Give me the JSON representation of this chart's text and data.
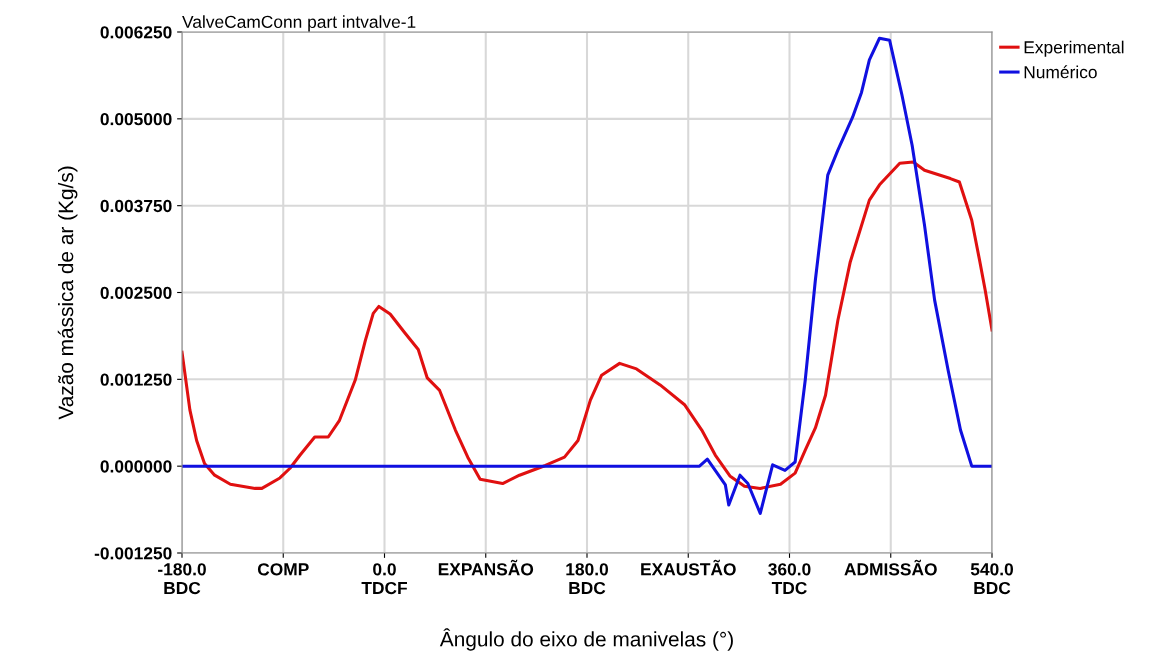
{
  "chart_data": {
    "type": "line",
    "title": "ValveCamConn part intvalve-1",
    "xlabel": "Ângulo do eixo de manivelas (°)",
    "ylabel": "Vazão mássica de ar (Kg/s)",
    "xlim": [
      -180,
      540
    ],
    "xticks": [
      {
        "value": -180,
        "label": "-180.0\nBDC"
      },
      {
        "value": -90,
        "label": "COMP"
      },
      {
        "value": 0,
        "label": "0.0\nTDCF"
      },
      {
        "value": 90,
        "label": "EXPANSÃO"
      },
      {
        "value": 180,
        "label": "180.0\nBDC"
      },
      {
        "value": 270,
        "label": "EXAUSTÃO"
      },
      {
        "value": 360,
        "label": "360.0\nTDC"
      },
      {
        "value": 450,
        "label": "ADMISSÃO"
      },
      {
        "value": 540,
        "label": "540.0\nBDC"
      }
    ],
    "ylim": [
      -0.00125,
      0.00625
    ],
    "yticks": [
      {
        "value": -0.00125,
        "label": "-0.001250"
      },
      {
        "value": 0,
        "label": "0.000000"
      },
      {
        "value": 0.00125,
        "label": "0.001250"
      },
      {
        "value": 0.0025,
        "label": "0.002500"
      },
      {
        "value": 0.00375,
        "label": "0.003750"
      },
      {
        "value": 0.005,
        "label": "0.005000"
      },
      {
        "value": 0.00625,
        "label": "0.006250"
      }
    ],
    "grid": true,
    "legend": "top right",
    "marker": "none",
    "line_style": "solid",
    "series": [
      {
        "name": "Experimental",
        "color": "#e01010",
        "x": [
          -180,
          -173,
          -167,
          -160,
          -151,
          -137,
          -115,
          -109,
          -93,
          -84,
          -75,
          -62,
          -50,
          -40,
          -26,
          -17,
          -10,
          -5,
          5,
          18,
          30,
          38,
          49,
          63,
          74,
          85,
          105,
          120,
          143,
          160,
          172,
          183,
          193,
          209,
          224,
          245,
          267,
          282,
          294,
          307,
          320,
          334,
          352,
          365,
          374,
          383,
          392,
          403,
          414,
          431,
          440,
          458,
          470,
          480,
          503,
          511,
          522,
          529,
          534,
          540
        ],
        "values": [
          0.00164,
          0.00081,
          0.00037,
          4e-05,
          -0.00013,
          -0.00026,
          -0.00032,
          -0.00032,
          -0.00017,
          -3e-05,
          0.00016,
          0.00042,
          0.00042,
          0.00066,
          0.00124,
          0.00181,
          0.0022,
          0.0023,
          0.00219,
          0.00192,
          0.00168,
          0.00127,
          0.00109,
          0.00052,
          0.00013,
          -0.00019,
          -0.00025,
          -0.00013,
          1e-05,
          0.00013,
          0.00037,
          0.00095,
          0.00131,
          0.00148,
          0.0014,
          0.00117,
          0.00088,
          0.00052,
          0.00016,
          -0.00014,
          -0.00029,
          -0.00032,
          -0.00026,
          -0.0001,
          0.00023,
          0.00055,
          0.00102,
          0.0021,
          0.00294,
          0.00383,
          0.00405,
          0.00436,
          0.00438,
          0.00426,
          0.00414,
          0.00409,
          0.00354,
          0.00296,
          0.00253,
          0.00196
        ]
      },
      {
        "name": "Numérico",
        "color": "#1010e0",
        "x": [
          -180,
          280,
          287,
          303,
          306,
          316,
          323,
          334,
          345,
          356,
          365,
          374,
          383,
          394,
          403,
          416,
          424,
          431,
          440,
          449,
          460,
          469,
          480,
          489,
          501,
          512,
          522,
          540
        ],
        "values": [
          0,
          0,
          0.0001,
          -0.00027,
          -0.00056,
          -0.00013,
          -0.00025,
          -0.00068,
          2e-05,
          -6e-05,
          6e-05,
          0.00124,
          0.00268,
          0.00419,
          0.00455,
          0.00502,
          0.00538,
          0.00585,
          0.00616,
          0.00613,
          0.00534,
          0.00462,
          0.00347,
          0.00239,
          0.00138,
          0.00052,
          0,
          0
        ]
      }
    ]
  }
}
